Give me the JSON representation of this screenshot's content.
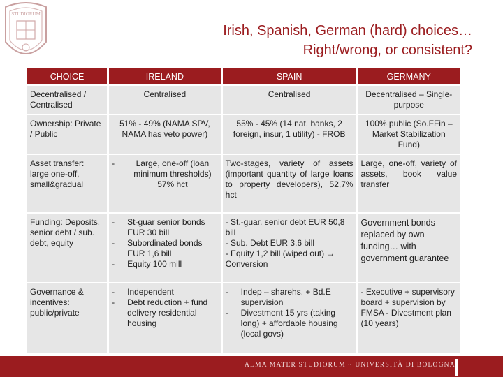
{
  "slide": {
    "title_line1": "Irish, Spanish, German (hard) choices…",
    "title_line2": "Right/wrong, or consistent?",
    "footer_text": "ALMA MATER STUDIORUM ~ UNIVERSITÀ DI BOLOGNA",
    "seal_text": "STUDIORUM",
    "colors": {
      "accent": "#9b1c1f",
      "cell": "#e6e6e6"
    }
  },
  "table": {
    "headers": [
      "CHOICE",
      "IRELAND",
      "SPAIN",
      "GERMANY"
    ],
    "rows": [
      {
        "choice": "Decentralised / Centralised",
        "ireland": "Centralised",
        "spain": "Centralised",
        "germany": "Decentralised – Single-purpose"
      },
      {
        "choice": "Ownership: Private / Public",
        "ireland": "51% - 49% (NAMA SPV, NAMA has veto power)",
        "spain": "55% - 45% (14 nat. banks, 2 foreign, insur, 1 utility) - FROB",
        "germany": "100% public (So.FFin – Market Stabilization Fund)"
      },
      {
        "choice": "Asset transfer: large one-off, small&gradual",
        "ireland_items": [
          {
            "dash": "-",
            "text": "Large, one-off (loan minimum thresholds) 57% hct"
          }
        ],
        "spain": "Two-stages, variety of assets (important quantity of large loans to property developers), 52,7% hct",
        "germany": "Large, one-off, variety of assets, book value transfer"
      },
      {
        "choice": "Funding: Deposits, senior debt / sub. debt, equity",
        "ireland_items": [
          {
            "dash": "-",
            "text": "St-guar senior bonds EUR 30 bill"
          },
          {
            "dash": "-",
            "text": "Subordinated bonds EUR 1,6 bill"
          },
          {
            "dash": "-",
            "text": "Equity 100 mill"
          }
        ],
        "spain_lines": [
          "- St.-guar. senior debt EUR 50,8 bill",
          "- Sub. Debt EUR 3,6 bill",
          "- Equity 1,2 bill (wiped out) → Conversion"
        ],
        "germany": "Government bonds replaced by own funding… with government guarantee"
      },
      {
        "choice": "Governance & incentives: public/private",
        "ireland_items": [
          {
            "dash": "-",
            "text": "Independent"
          },
          {
            "dash": "-",
            "text": "Debt reduction + fund delivery residential housing"
          }
        ],
        "spain_items": [
          {
            "dash": "-",
            "text": "Indep – sharehs. + Bd.E supervision"
          },
          {
            "dash": "-",
            "text": "Divestment 15 yrs (taking long) + affordable housing (local govs)"
          }
        ],
        "germany": "- Executive + supervisory board + supervision by FMSA - Divestment plan (10 years)"
      }
    ]
  }
}
